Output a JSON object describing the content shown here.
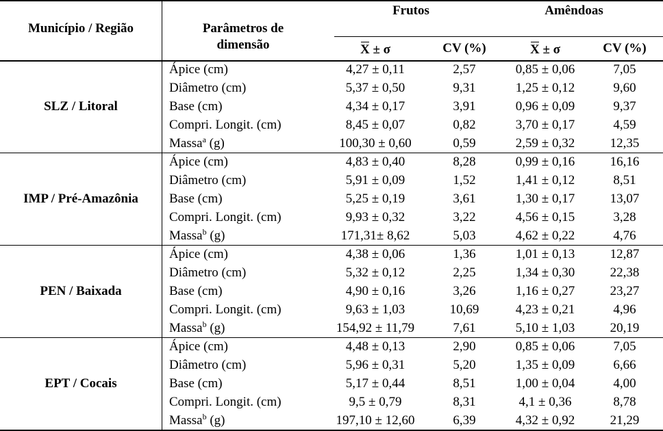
{
  "header": {
    "col_municipio": "Município / Região",
    "col_parametros": "Parâmetros de dimensão",
    "col_parametros_line1": "Parâmetros de",
    "col_parametros_line2": "dimensão",
    "group_frutos": "Frutos",
    "group_amendoas": "Amêndoas",
    "mean_symbol": "X",
    "pm_sigma": "± σ",
    "cv_label": "CV (%)"
  },
  "groups": [
    {
      "name": "SLZ / Litoral",
      "rows": [
        {
          "param": "Ápice (cm)",
          "sup": "",
          "unit": "",
          "frutos_mean": "4,27 ± 0,11",
          "frutos_cv": "2,57",
          "amendoas_mean": "0,85 ± 0,06",
          "amendoas_cv": "7,05"
        },
        {
          "param": "Diâmetro (cm)",
          "sup": "",
          "unit": "",
          "frutos_mean": "5,37 ± 0,50",
          "frutos_cv": "9,31",
          "amendoas_mean": "1,25 ± 0,12",
          "amendoas_cv": "9,60"
        },
        {
          "param": "Base (cm)",
          "sup": "",
          "unit": "",
          "frutos_mean": "4,34 ± 0,17",
          "frutos_cv": "3,91",
          "amendoas_mean": "0,96 ± 0,09",
          "amendoas_cv": "9,37"
        },
        {
          "param": "Compri. Longit. (cm)",
          "sup": "",
          "unit": "",
          "frutos_mean": "8,45 ± 0,07",
          "frutos_cv": "0,82",
          "amendoas_mean": "3,70 ± 0,17",
          "amendoas_cv": "4,59"
        },
        {
          "param": "Massa",
          "sup": "a",
          "unit": " (g)",
          "frutos_mean": "100,30 ± 0,60",
          "frutos_cv": "0,59",
          "amendoas_mean": "2,59 ± 0,32",
          "amendoas_cv": "12,35"
        }
      ]
    },
    {
      "name": "IMP / Pré-Amazônia",
      "rows": [
        {
          "param": "Ápice (cm)",
          "sup": "",
          "unit": "",
          "frutos_mean": "4,83 ± 0,40",
          "frutos_cv": "8,28",
          "amendoas_mean": "0,99 ± 0,16",
          "amendoas_cv": "16,16"
        },
        {
          "param": "Diâmetro (cm)",
          "sup": "",
          "unit": "",
          "frutos_mean": "5,91 ± 0,09",
          "frutos_cv": "1,52",
          "amendoas_mean": "1,41 ± 0,12",
          "amendoas_cv": "8,51"
        },
        {
          "param": "Base (cm)",
          "sup": "",
          "unit": "",
          "frutos_mean": "5,25 ± 0,19",
          "frutos_cv": "3,61",
          "amendoas_mean": "1,30 ± 0,17",
          "amendoas_cv": "13,07"
        },
        {
          "param": "Compri. Longit. (cm)",
          "sup": "",
          "unit": "",
          "frutos_mean": "9,93 ± 0,32",
          "frutos_cv": "3,22",
          "amendoas_mean": "4,56 ± 0,15",
          "amendoas_cv": "3,28"
        },
        {
          "param": "Massa",
          "sup": "b",
          "unit": " (g)",
          "frutos_mean": "171,31± 8,62",
          "frutos_cv": "5,03",
          "amendoas_mean": "4,62 ± 0,22",
          "amendoas_cv": "4,76"
        }
      ]
    },
    {
      "name": "PEN / Baixada",
      "rows": [
        {
          "param": "Ápice (cm)",
          "sup": "",
          "unit": "",
          "frutos_mean": "4,38 ± 0,06",
          "frutos_cv": "1,36",
          "amendoas_mean": "1,01 ± 0,13",
          "amendoas_cv": "12,87"
        },
        {
          "param": "Diâmetro (cm)",
          "sup": "",
          "unit": "",
          "frutos_mean": "5,32 ± 0,12",
          "frutos_cv": "2,25",
          "amendoas_mean": "1,34 ± 0,30",
          "amendoas_cv": "22,38"
        },
        {
          "param": "Base (cm)",
          "sup": "",
          "unit": "",
          "frutos_mean": "4,90 ± 0,16",
          "frutos_cv": "3,26",
          "amendoas_mean": "1,16 ± 0,27",
          "amendoas_cv": "23,27"
        },
        {
          "param": "Compri. Longit. (cm)",
          "sup": "",
          "unit": "",
          "frutos_mean": "9,63 ± 1,03",
          "frutos_cv": "10,69",
          "amendoas_mean": "4,23 ± 0,21",
          "amendoas_cv": "4,96"
        },
        {
          "param": "Massa",
          "sup": "b",
          "unit": " (g)",
          "frutos_mean": "154,92 ± 11,79",
          "frutos_cv": "7,61",
          "amendoas_mean": "5,10 ± 1,03",
          "amendoas_cv": "20,19"
        }
      ]
    },
    {
      "name": "EPT / Cocais",
      "rows": [
        {
          "param": "Ápice (cm)",
          "sup": "",
          "unit": "",
          "frutos_mean": "4,48 ± 0,13",
          "frutos_cv": "2,90",
          "amendoas_mean": "0,85 ± 0,06",
          "amendoas_cv": "7,05"
        },
        {
          "param": "Diâmetro (cm)",
          "sup": "",
          "unit": "",
          "frutos_mean": "5,96 ± 0,31",
          "frutos_cv": "5,20",
          "amendoas_mean": "1,35 ± 0,09",
          "amendoas_cv": "6,66"
        },
        {
          "param": "Base (cm)",
          "sup": "",
          "unit": "",
          "frutos_mean": "5,17 ± 0,44",
          "frutos_cv": "8,51",
          "amendoas_mean": "1,00 ± 0,04",
          "amendoas_cv": "4,00"
        },
        {
          "param": "Compri. Longit. (cm)",
          "sup": "",
          "unit": "",
          "frutos_mean": "9,5 ± 0,79",
          "frutos_cv": "8,31",
          "amendoas_mean": "4,1 ± 0,36",
          "amendoas_cv": "8,78"
        },
        {
          "param": "Massa",
          "sup": "b",
          "unit": " (g)",
          "frutos_mean": "197,10 ± 12,60",
          "frutos_cv": "6,39",
          "amendoas_mean": "4,32 ± 0,92",
          "amendoas_cv": "21,29"
        }
      ]
    }
  ]
}
